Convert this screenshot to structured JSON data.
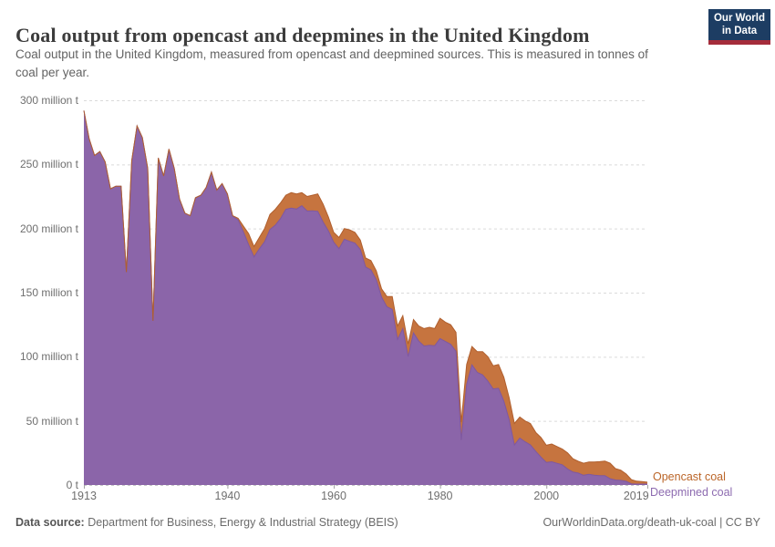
{
  "header": {
    "title": "Coal output from opencast and deepmines in the United Kingdom",
    "logo": {
      "line1": "Our World",
      "line2": "in Data",
      "bg_color": "#1d3d63",
      "stripe_color": "#a52c3b"
    }
  },
  "subtitle": "Coal output in the United Kingdom, measured from opencast and deepmined sources. This is measured in tonnes of coal per year.",
  "chart_data": {
    "type": "area",
    "stacked": true,
    "title": "Coal output from opencast and deepmines in the United Kingdom",
    "unit": "tonnes of coal per year",
    "x_range": [
      1913,
      2019
    ],
    "x_step": 1,
    "ylim": [
      0,
      300000000
    ],
    "ylim_million_tonnes": [
      0,
      300
    ],
    "grid": "horizontal dashed",
    "legend_position": "right of plot at series end",
    "yticks": [
      {
        "value": 0,
        "label": "0 t"
      },
      {
        "value": 50,
        "label": "50 million t"
      },
      {
        "value": 100,
        "label": "100 million t"
      },
      {
        "value": 150,
        "label": "150 million t"
      },
      {
        "value": 200,
        "label": "200 million t"
      },
      {
        "value": 250,
        "label": "250 million t"
      },
      {
        "value": 300,
        "label": "300 million t"
      }
    ],
    "xticks": [
      {
        "year": 1913,
        "label": "1913"
      },
      {
        "year": 1940,
        "label": "1940"
      },
      {
        "year": 1960,
        "label": "1960"
      },
      {
        "year": 1980,
        "label": "1980"
      },
      {
        "year": 2000,
        "label": "2000"
      },
      {
        "year": 2019,
        "label": "2019",
        "align": "right"
      }
    ],
    "series": [
      {
        "name": "Deepmined coal",
        "color": "#8b65a9",
        "line_color": "#7f58a1",
        "unit": "million tonnes",
        "values": [
          292,
          270,
          257,
          260,
          252,
          231,
          233,
          233,
          166,
          253,
          280,
          271,
          247,
          128,
          255,
          241,
          262,
          247,
          223,
          212,
          210,
          224,
          226,
          232,
          244,
          230,
          235,
          227,
          209.5,
          206.7,
          197.5,
          187.4,
          177.9,
          184.1,
          189.7,
          199.3,
          202.6,
          207.8,
          215,
          215.9,
          215.2,
          217.8,
          213.6,
          213.8,
          213.4,
          205,
          198.1,
          189.3,
          184.3,
          191.6,
          190,
          188.6,
          183.6,
          170,
          167.8,
          160,
          146.5,
          139,
          137,
          113.5,
          121.9,
          100.1,
          118.6,
          112.2,
          108.4,
          109,
          108.6,
          114.2,
          111.9,
          109.7,
          104.3,
          35,
          78.4,
          93.7,
          87.9,
          85.9,
          81,
          74.9,
          75.4,
          65.3,
          51,
          31.2,
          36.6,
          33.7,
          31.3,
          26.2,
          21.7,
          17.6,
          18.1,
          16.9,
          15.8,
          12.5,
          10.1,
          9.3,
          7.6,
          8.3,
          7.7,
          7.3,
          7.3,
          4.9,
          3.9,
          3.6,
          2.9,
          0.9,
          0.7,
          0.7,
          0.7
        ]
      },
      {
        "name": "Opencast coal",
        "color": "#c6743f",
        "line_color": "#b05f2e",
        "unit": "million tonnes",
        "values": [
          0,
          0,
          0,
          0,
          0,
          0,
          0,
          0,
          0,
          0,
          0,
          0,
          0,
          0,
          0,
          0,
          0,
          0,
          0,
          0,
          0,
          0,
          0,
          0,
          0,
          0,
          0,
          0,
          0.5,
          1.3,
          4.5,
          8.6,
          8.1,
          8.9,
          10.3,
          11.7,
          12.4,
          12.2,
          11,
          12.1,
          11.8,
          10.2,
          11.4,
          12.2,
          13.6,
          14,
          10.9,
          7.7,
          8.7,
          8.4,
          9,
          8.4,
          7.4,
          7,
          7.2,
          7,
          6.5,
          8,
          10,
          10.5,
          10.1,
          9.9,
          10.4,
          11.8,
          13.6,
          14,
          13.4,
          15.8,
          15.1,
          15.3,
          14.7,
          14,
          15.6,
          14.3,
          16.1,
          18.1,
          19,
          18.1,
          18.6,
          18.7,
          17,
          16.8,
          16.4,
          16.3,
          16.7,
          14.8,
          15.3,
          13.4,
          13.9,
          13.1,
          12.2,
          12.5,
          10.4,
          9.2,
          9.4,
          9.7,
          10.2,
          10.9,
          11.3,
          12.1,
          8.9,
          8,
          5.7,
          3.3,
          2.3,
          1.9,
          1.5
        ]
      }
    ]
  },
  "legend": [
    {
      "label": "Opencast coal",
      "color": "#bb6528"
    },
    {
      "label": "Deepmined coal",
      "color": "#8d6bb0"
    }
  ],
  "footer": {
    "source_label": "Data source:",
    "source": " Department for Business, Energy & Industrial Strategy (BEIS)",
    "link": "OurWorldinData.org/death-uk-coal | CC BY"
  }
}
